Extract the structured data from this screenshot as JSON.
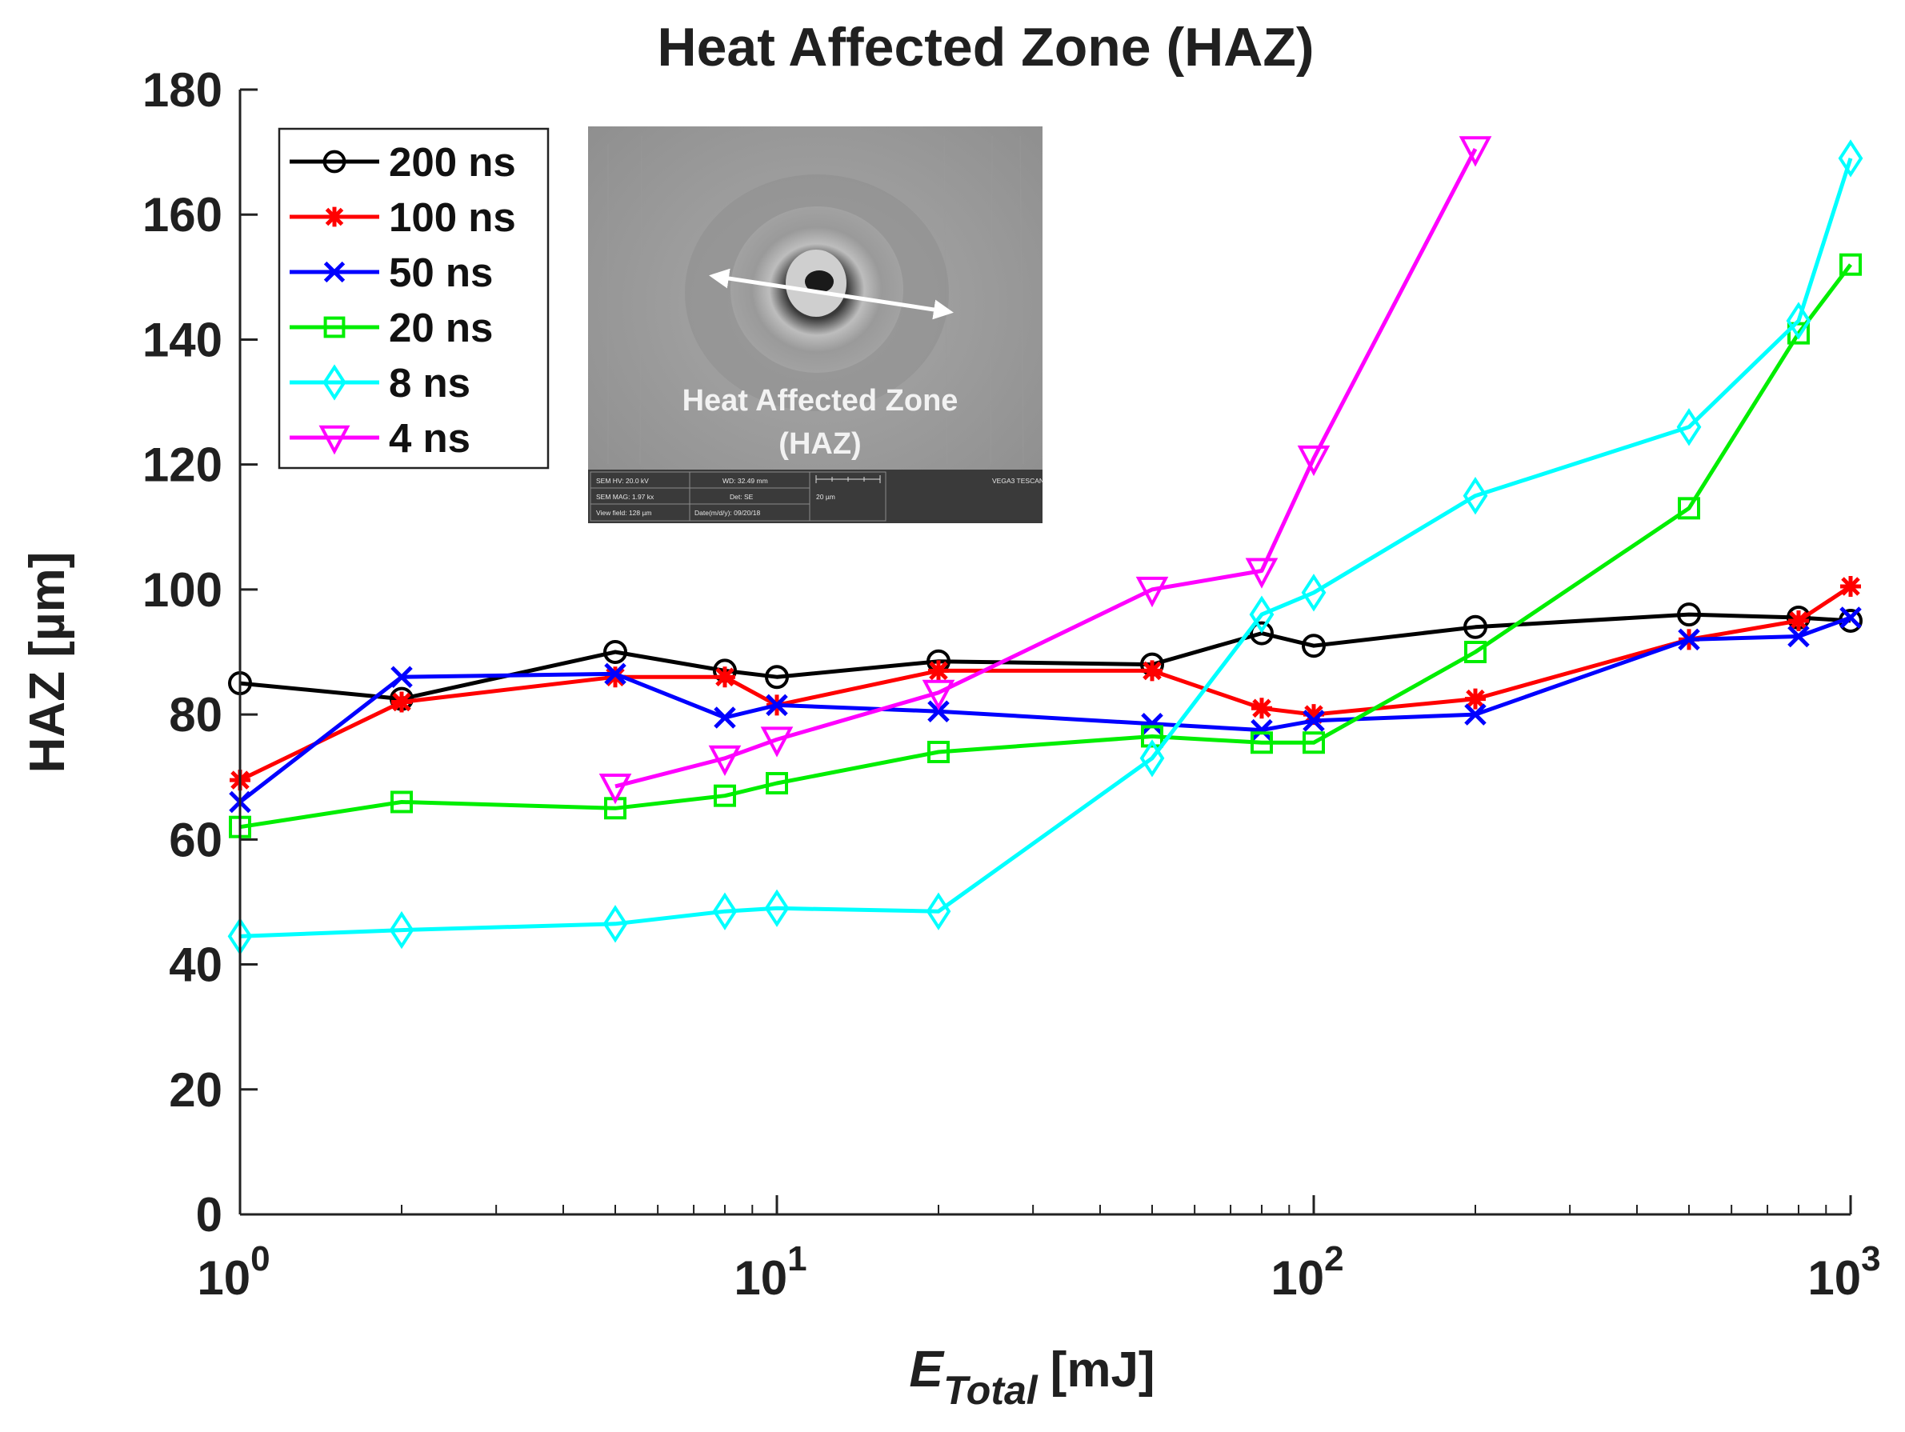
{
  "colors": {
    "200 ns": "#000000",
    "100 ns": "#ff0000",
    "50 ns": "#0000ff",
    "20 ns": "#00ee00",
    "8 ns": "#00ffff",
    "4 ns": "#ff00ff"
  },
  "chart_data": {
    "type": "line",
    "title": "Heat Affected Zone (HAZ)",
    "xlabel": "E_Total [mJ]",
    "xlabel_main": "E",
    "xlabel_sub": "Total",
    "xlabel_unit": "[mJ]",
    "ylabel": "HAZ [µm]",
    "xscale": "log",
    "xlim": [
      1,
      1000
    ],
    "ylim": [
      0,
      180
    ],
    "yticks": [
      0,
      20,
      40,
      60,
      80,
      100,
      120,
      140,
      160,
      180
    ],
    "xticks": [
      {
        "value": 1,
        "base": "10",
        "exp": "0"
      },
      {
        "value": 10,
        "base": "10",
        "exp": "1"
      },
      {
        "value": 100,
        "base": "10",
        "exp": "2"
      },
      {
        "value": 1000,
        "base": "10",
        "exp": "3"
      }
    ],
    "legend_position": "top-left",
    "grid": false,
    "series": [
      {
        "name": "200 ns",
        "marker": "circle",
        "x": [
          1,
          2,
          5,
          8,
          10,
          20,
          50,
          80,
          100,
          200,
          500,
          800,
          1000
        ],
        "y": [
          85,
          82.5,
          90,
          87,
          86,
          88.5,
          88,
          93,
          91,
          94,
          96,
          95.5,
          95
        ]
      },
      {
        "name": "100 ns",
        "marker": "asterisk",
        "x": [
          1,
          2,
          5,
          8,
          10,
          20,
          50,
          80,
          100,
          200,
          500,
          800,
          1000
        ],
        "y": [
          69.5,
          82,
          86,
          86,
          81.5,
          87,
          87,
          81,
          80,
          82.5,
          92,
          95,
          100.5
        ]
      },
      {
        "name": "50 ns",
        "marker": "x",
        "x": [
          1,
          2,
          5,
          8,
          10,
          20,
          50,
          80,
          100,
          200,
          500,
          800,
          1000
        ],
        "y": [
          66,
          86,
          86.5,
          79.5,
          81.5,
          80.5,
          78.5,
          77.5,
          79,
          80,
          92,
          92.5,
          95.5
        ]
      },
      {
        "name": "20 ns",
        "marker": "square",
        "x": [
          1,
          2,
          5,
          8,
          10,
          20,
          50,
          80,
          100,
          200,
          500,
          800,
          1000
        ],
        "y": [
          62,
          66,
          65,
          67,
          69,
          74,
          76.5,
          75.5,
          75.5,
          90,
          113,
          141,
          152
        ]
      },
      {
        "name": "8 ns",
        "marker": "diamond",
        "x": [
          1,
          2,
          5,
          8,
          10,
          20,
          50,
          80,
          100,
          200,
          500,
          800,
          1000
        ],
        "y": [
          44.5,
          45.5,
          46.5,
          48.5,
          49,
          48.5,
          73,
          96,
          99.5,
          115,
          126,
          143,
          169
        ]
      },
      {
        "name": "4 ns",
        "marker": "triangle-down",
        "x": [
          5,
          8,
          10,
          20,
          50,
          80,
          100,
          200
        ],
        "y": [
          68.5,
          73,
          76,
          83.5,
          100,
          103,
          121,
          170.5
        ]
      }
    ]
  },
  "inset": {
    "label_line1": "Heat Affected Zone",
    "label_line2": "(HAZ)",
    "meta": [
      "SEM HV: 20.0 kV",
      "WD: 32.49 mm",
      "VEGA3 TESCAN",
      "SEM MAG: 1.97 kx",
      "Det: SE",
      "20 µm",
      "View field: 128 µm",
      "Date(m/d/y): 09/20/18"
    ]
  }
}
